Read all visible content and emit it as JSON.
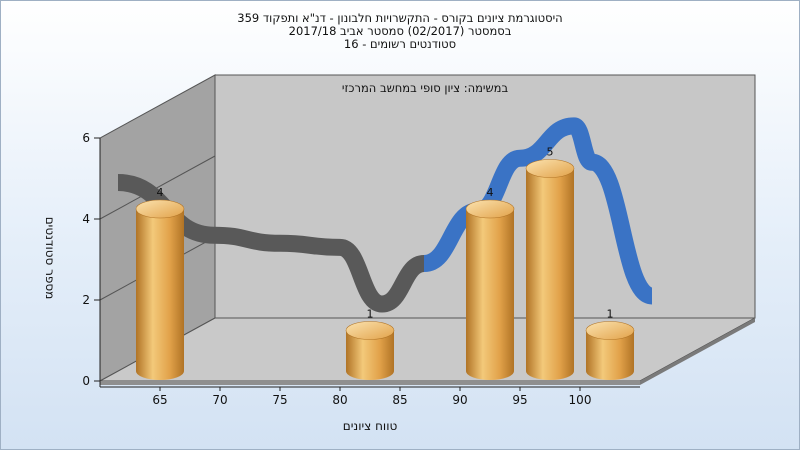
{
  "chart_data": {
    "type": "bar",
    "title_lines": [
      "היסטוגרמת ציונים בקורס - התקשרויות חלבונון - דנ\"א ותפקוד 359",
      "בסמסטר  (02/2017)  סמסטר אביב 2017/18",
      "סטודנטים רשומים - 16"
    ],
    "subtitle": "במשימה: ציון סופי במחשב המרכזי",
    "xlabel": "טווח ציונים",
    "ylabel": "מספר סטודנטים",
    "x_ticks": [
      65,
      70,
      75,
      80,
      85,
      90,
      95,
      100
    ],
    "y_ticks": [
      0,
      2,
      4,
      6
    ],
    "ylim": [
      0,
      6
    ],
    "bars": [
      {
        "x": 65,
        "value": 4
      },
      {
        "x": 82.5,
        "value": 1
      },
      {
        "x": 92.5,
        "value": 4
      },
      {
        "x": 97.5,
        "value": 5
      },
      {
        "x": 102.5,
        "value": 1
      }
    ],
    "curve_segments": [
      {
        "color": "#595959",
        "points": [
          [
            61.5,
            4.9
          ],
          [
            69.5,
            3.6
          ],
          [
            75,
            3.4
          ],
          [
            80,
            3.3
          ],
          [
            83.5,
            1.9
          ],
          [
            87,
            2.9
          ]
        ]
      },
      {
        "color": "#3a73c5",
        "points": [
          [
            87,
            2.9
          ],
          [
            91.5,
            4.2
          ],
          [
            95,
            5.5
          ],
          [
            99.5,
            6.3
          ],
          [
            101,
            5.4
          ],
          [
            106,
            2.1
          ]
        ]
      }
    ],
    "colors": {
      "bar_light": "#f3c97a",
      "bar_mid": "#e2a24a",
      "bar_dark": "#b07325",
      "wall": "#a3a3a3",
      "floor": "#c9c9c9",
      "back_wall": "#c7c7c7"
    }
  }
}
